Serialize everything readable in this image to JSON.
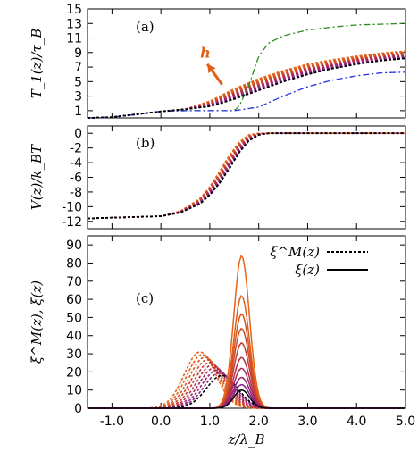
{
  "colors": {
    "black": "#000000",
    "green": "#2e8b1f",
    "blue": "#2233dd",
    "orange": "#e0601a",
    "ramp": [
      "#e8641a",
      "#e0601a",
      "#d85620",
      "#cf4a28",
      "#c43c34",
      "#b73046",
      "#a8285c",
      "#962276",
      "#821e8e",
      "#6f1da0"
    ]
  },
  "chart_data": [
    {
      "type": "line",
      "panel_label": "(a)",
      "ylabel": "T_1(z)/τ_B",
      "xlim": [
        -1.5,
        5.0
      ],
      "ylim": [
        0,
        15
      ],
      "y_ticks": [
        1,
        3,
        5,
        7,
        9,
        11,
        13,
        15
      ],
      "x_ticks": [
        -1.0,
        0.0,
        1.0,
        2.0,
        3.0,
        4.0,
        5.0
      ],
      "arrow_label": "h",
      "series": [
        {
          "style": "black-dashed",
          "x": [
            -1.5,
            -1.0,
            -0.5,
            0.0,
            0.5,
            1.0,
            1.5,
            2.0,
            2.5,
            3.0,
            3.5,
            4.0,
            4.5,
            5.0
          ],
          "y": [
            0.0,
            0.1,
            0.5,
            0.9,
            1.2,
            1.6,
            2.6,
            3.8,
            5.0,
            6.0,
            6.8,
            7.4,
            7.9,
            8.2
          ]
        },
        {
          "style": "green-dashdot",
          "x": [
            -1.5,
            -1.0,
            0.0,
            0.5,
            1.0,
            1.5,
            1.6,
            1.8,
            2.0,
            2.2,
            2.5,
            3.0,
            3.5,
            4.0,
            4.5,
            5.0
          ],
          "y": [
            0.0,
            0.1,
            0.9,
            1.0,
            1.0,
            1.0,
            1.6,
            4.5,
            8.5,
            10.3,
            11.3,
            12.1,
            12.5,
            12.8,
            12.9,
            13.0
          ]
        },
        {
          "style": "blue-dashdot",
          "x": [
            -1.5,
            -1.0,
            0.0,
            0.5,
            1.0,
            1.5,
            2.0,
            2.5,
            3.0,
            3.5,
            4.0,
            4.5,
            5.0
          ],
          "y": [
            0.0,
            0.1,
            0.9,
            1.0,
            1.0,
            1.0,
            1.5,
            3.0,
            4.3,
            5.2,
            5.8,
            6.2,
            6.3
          ]
        },
        {
          "style": "orange-top",
          "x": [
            -1.5,
            -1.0,
            -0.5,
            0.0,
            0.5,
            1.0,
            1.5,
            2.0,
            2.5,
            3.0,
            3.5,
            4.0,
            4.5,
            5.0
          ],
          "y": [
            0.0,
            0.1,
            0.5,
            0.9,
            1.2,
            2.3,
            4.0,
            5.4,
            6.5,
            7.4,
            8.0,
            8.5,
            8.9,
            9.2
          ]
        }
      ]
    },
    {
      "type": "line",
      "panel_label": "(b)",
      "ylabel": "V(z)/k_BT",
      "xlim": [
        -1.5,
        5.0
      ],
      "ylim": [
        -13,
        1
      ],
      "y_ticks": [
        0,
        -2,
        -4,
        -6,
        -8,
        -10,
        -12
      ],
      "x_ticks": [
        -1.0,
        0.0,
        1.0,
        2.0,
        3.0,
        4.0,
        5.0
      ],
      "series": [
        {
          "style": "black-dashed",
          "x": [
            -1.5,
            -1.0,
            0.0,
            0.4,
            0.8,
            1.0,
            1.2,
            1.4,
            1.6,
            1.8,
            2.0,
            2.2,
            3.0,
            5.0
          ],
          "y": [
            -11.6,
            -11.5,
            -11.3,
            -10.8,
            -9.6,
            -8.4,
            -6.8,
            -4.8,
            -2.6,
            -1.0,
            -0.2,
            0.0,
            0.0,
            0.0
          ]
        },
        {
          "style": "orange-front",
          "x": [
            -1.5,
            -1.0,
            0.0,
            0.4,
            0.8,
            1.0,
            1.2,
            1.4,
            1.6,
            1.8,
            2.0,
            3.0,
            5.0
          ],
          "y": [
            -11.6,
            -11.5,
            -11.3,
            -10.6,
            -8.9,
            -7.3,
            -5.2,
            -3.0,
            -1.2,
            -0.2,
            0.0,
            0.0,
            0.0
          ]
        }
      ]
    },
    {
      "type": "line",
      "panel_label": "(c)",
      "ylabel": "ξ^M(z), ξ(z)",
      "xlabel": "z/λ_B",
      "xlim": [
        -1.5,
        5.0
      ],
      "ylim": [
        0,
        95
      ],
      "y_ticks": [
        0,
        10,
        20,
        30,
        40,
        50,
        60,
        70,
        80,
        90
      ],
      "x_ticks": [
        -1.0,
        0.0,
        1.0,
        2.0,
        3.0,
        4.0,
        5.0
      ],
      "legend": [
        {
          "label": "ξ^M(z)",
          "style": "dashed"
        },
        {
          "label": "ξ(z)",
          "style": "solid"
        }
      ],
      "dashed_peaks": {
        "center": [
          0.8,
          1.25
        ],
        "heights": [
          31,
          18
        ]
      },
      "solid_peaks": {
        "center": 1.65,
        "heights": [
          84,
          62,
          52,
          44,
          36,
          28,
          22,
          17,
          13,
          10
        ]
      }
    }
  ]
}
